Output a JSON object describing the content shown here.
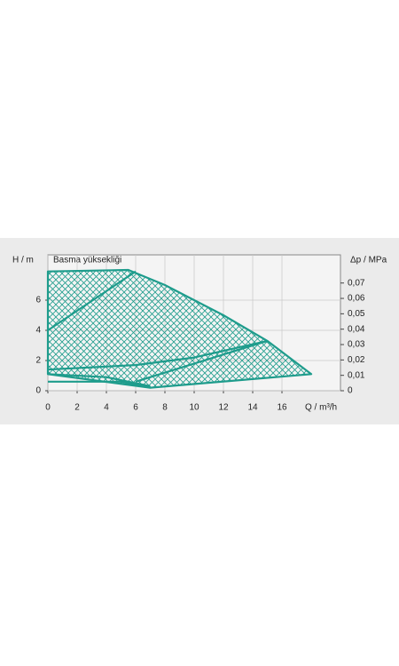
{
  "chart_data": {
    "type": "line",
    "title": "Basma yüksekliği",
    "ylabel": "H / m",
    "xlabel": "Q / m³/h",
    "y2label": "Δp / MPa",
    "xlim": [
      0,
      20
    ],
    "xticks": [
      0,
      2,
      4,
      6,
      8,
      10,
      12,
      14,
      16
    ],
    "ylim": [
      0,
      9
    ],
    "yticks": [
      0,
      2,
      4,
      6
    ],
    "y2lim": [
      0,
      0.0883
    ],
    "y2ticks": [
      0,
      {
        "value": 0.01,
        "label": "0,01"
      },
      {
        "value": 0.02,
        "label": "0,02"
      },
      {
        "value": 0.03,
        "label": "0,03"
      },
      {
        "value": 0.04,
        "label": "0,04"
      },
      {
        "value": 0.05,
        "label": "0,05"
      },
      {
        "value": 0.06,
        "label": "0,06"
      },
      {
        "value": 0.07,
        "label": "0,07"
      }
    ],
    "grid": true,
    "color": "#1e9c8c",
    "series": [
      {
        "fill": true,
        "x": [
          0,
          5.5,
          8,
          12,
          15,
          18,
          7,
          0
        ],
        "values": [
          7.9,
          8,
          7,
          5,
          3.3,
          1.1,
          0.2,
          1.1
        ]
      },
      {
        "x": [
          0,
          6
        ],
        "values": [
          4,
          7.9
        ]
      },
      {
        "x": [
          0,
          6,
          10,
          15
        ],
        "values": [
          1.4,
          1.7,
          2.2,
          3.3
        ]
      },
      {
        "x": [
          6,
          10,
          15
        ],
        "values": [
          0.6,
          1.8,
          3.3
        ]
      },
      {
        "x": [
          0,
          4,
          7
        ],
        "values": [
          1.1,
          0.9,
          0.3
        ]
      },
      {
        "x": [
          0,
          5,
          7
        ],
        "values": [
          0.6,
          0.6,
          0.2
        ]
      }
    ]
  }
}
